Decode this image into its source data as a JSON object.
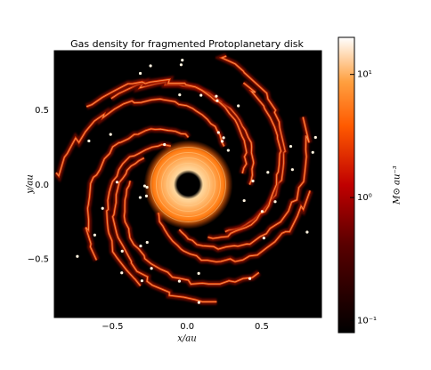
{
  "chart_data": {
    "type": "image",
    "title": "Gas density for fragmented Protoplanetary disk",
    "xlabel": "x/au",
    "ylabel": "y/au",
    "xlim": [
      -0.89,
      0.9
    ],
    "ylim": [
      -0.89,
      0.9
    ],
    "xticks": [
      {
        "value": -0.5,
        "label": "−0.5"
      },
      {
        "value": 0,
        "label": "0.0"
      },
      {
        "value": 0.5,
        "label": "0.5"
      }
    ],
    "yticks": [
      {
        "value": -0.5,
        "label": "−0.5"
      },
      {
        "value": 0,
        "label": "0.0"
      },
      {
        "value": 0.5,
        "label": "0.5"
      }
    ],
    "colorbar": {
      "label": "M⊙ au⁻³",
      "scale": "log",
      "lim": [
        0.08,
        20
      ],
      "ticks": [
        {
          "value": 0.1,
          "label": "10⁻¹"
        },
        {
          "value": 1,
          "label": "10⁰"
        },
        {
          "value": 10,
          "label": "10¹"
        }
      ]
    }
  }
}
